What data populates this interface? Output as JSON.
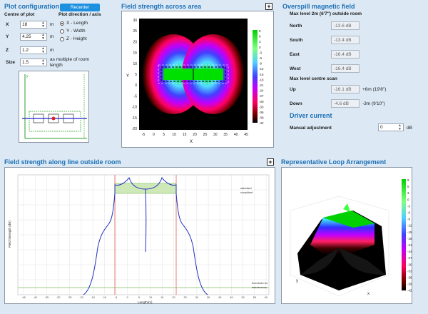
{
  "plot_config": {
    "title": "Plot configuration",
    "recenter_label": "Recenter",
    "centre_label": "Centre of plot",
    "direction_label": "Plot direction / axis",
    "x": {
      "label": "X",
      "value": "18",
      "unit": "m"
    },
    "y": {
      "label": "Y",
      "value": "4.25",
      "unit": "m"
    },
    "z": {
      "label": "Z",
      "value": "1.2",
      "unit": "m"
    },
    "size": {
      "label": "Size",
      "value": "1.5",
      "unit": "as multiple of room length"
    },
    "directions": [
      "X - Length",
      "Y - Width",
      "Z - Height"
    ],
    "selected_direction": 0
  },
  "field_area": {
    "title": "Field strength across area",
    "x_label": "X",
    "y_label": "Y",
    "x_ticks": [
      "-5",
      "0",
      "5",
      "10",
      "15",
      "20",
      "25",
      "30",
      "35",
      "40",
      "45"
    ],
    "y_ticks": [
      "30",
      "25",
      "20",
      "15",
      "10",
      "5",
      "0",
      "-5",
      "-10",
      "-15",
      "-20"
    ],
    "colorbar_ticks": [
      "9",
      "6",
      "3",
      "0",
      "-3",
      "-6",
      "-9",
      "-12",
      "-15",
      "-18",
      "-21",
      "-24",
      "-27",
      "-30",
      "-33",
      "-36",
      "-39",
      "-42"
    ]
  },
  "overspill": {
    "title": "Overspill magnetic field",
    "max_level_label": "Max level 2m (6'7\") outside room",
    "north": {
      "label": "North",
      "value": "-13.6 dB"
    },
    "south": {
      "label": "South",
      "value": "-13.4 dB"
    },
    "east": {
      "label": "East",
      "value": "-16.4 dB"
    },
    "west": {
      "label": "West",
      "value": "-16.4 dB"
    },
    "centre_label": "Max level centre scan",
    "up": {
      "label": "Up",
      "value": "-16.1 dB",
      "extra": "+6m (19'8\")"
    },
    "down": {
      "label": "Down",
      "value": "-4.6 dB",
      "extra": "-3m (9'10\")"
    }
  },
  "driver": {
    "title": "Driver current",
    "manual_label": "Manual adjustment",
    "value": "0",
    "unit": "dB"
  },
  "line_plot": {
    "title": "Field strength along line outside room",
    "x_label": "Length(m)",
    "y_label": "Field Strength (dB)",
    "standard_label_1": "standard",
    "standard_label_2": "compliant",
    "threshold_label_1": "threshold for",
    "threshold_label_2": "interference",
    "x_ticks": [
      "-45",
      "-40",
      "-35",
      "-30",
      "-25",
      "-20",
      "-15",
      "-10",
      "-5",
      "0",
      "5",
      "10",
      "15",
      "20",
      "25",
      "30",
      "35",
      "40",
      "45",
      "50",
      "55",
      "60"
    ]
  },
  "loop": {
    "title": "Representative Loop Arrangement",
    "x_label": "x",
    "y_label": "y",
    "colorbar_ticks": [
      "9",
      "6",
      "3",
      "0",
      "-3",
      "-6",
      "-9",
      "-12",
      "-15",
      "-18",
      "-21",
      "-24",
      "-27",
      "-30",
      "-33",
      "-36",
      "-39",
      "-42"
    ]
  },
  "colors": {
    "accent": "#1b6fb5",
    "button": "#1e90e0",
    "background": "#dce9f5"
  }
}
